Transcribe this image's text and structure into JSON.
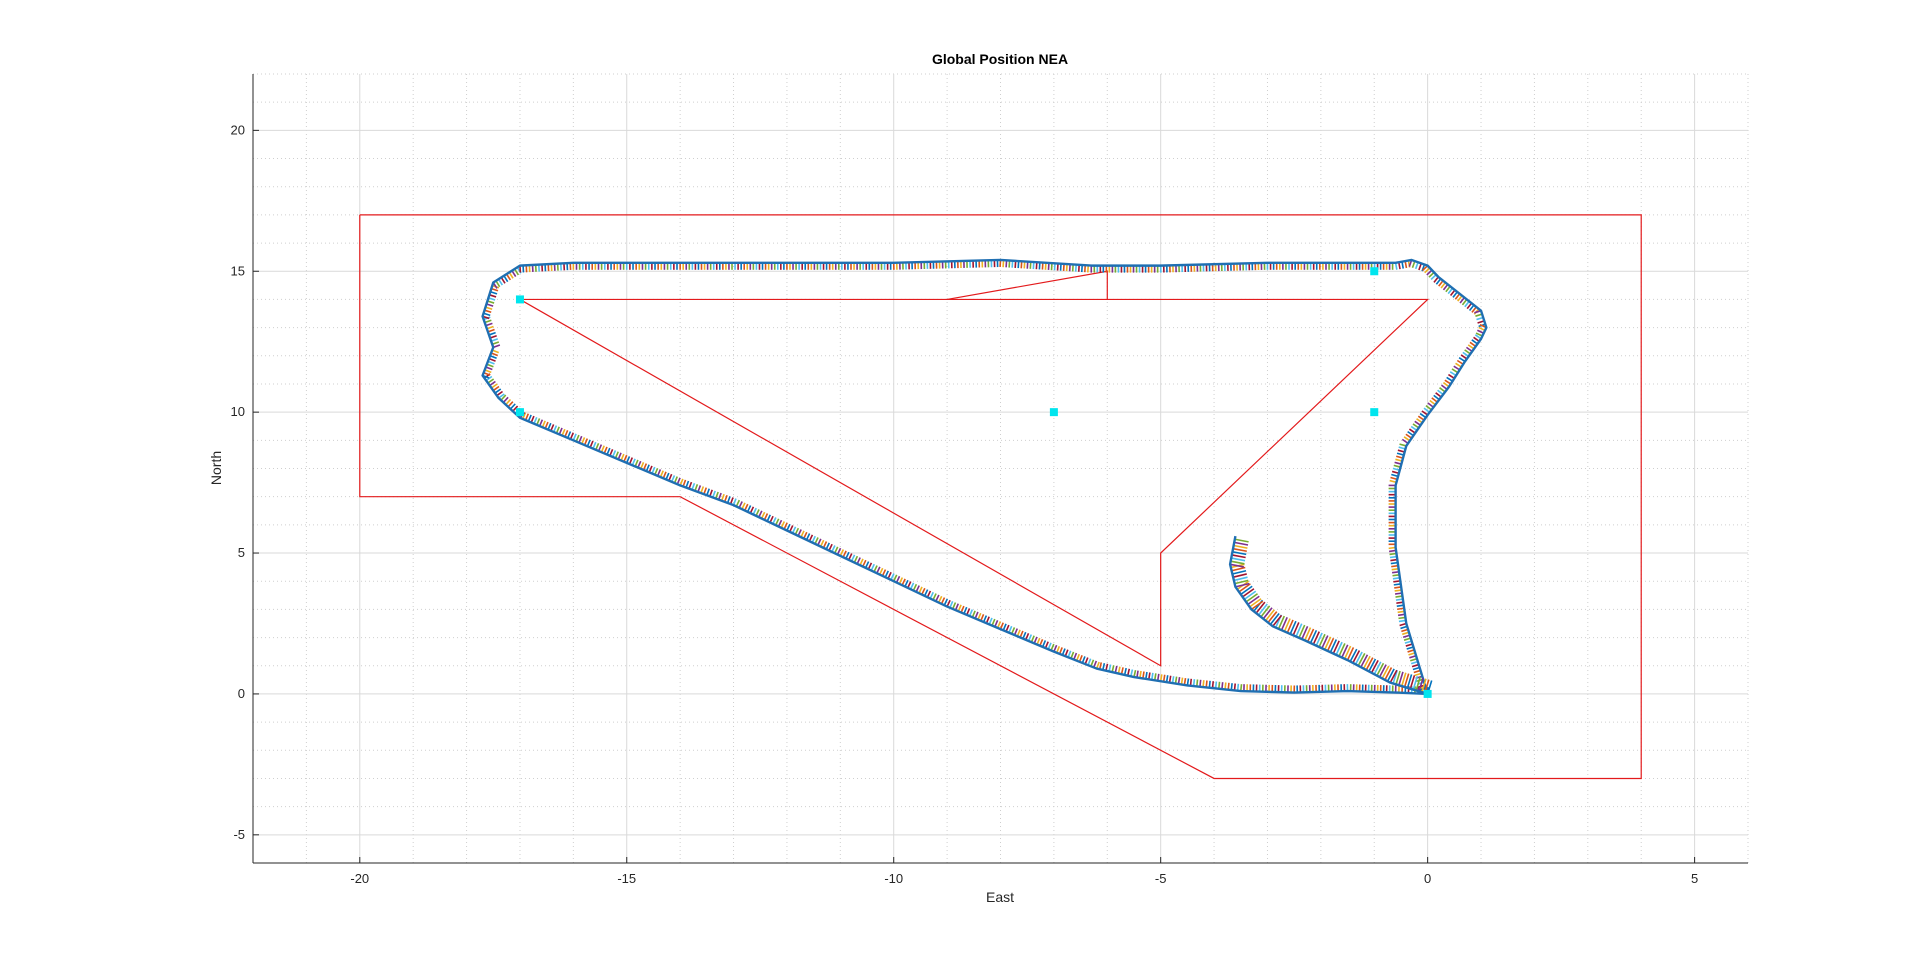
{
  "chart_data": {
    "type": "line",
    "title": "Global Position NEA",
    "xlabel": "East",
    "ylabel": "North",
    "xlim": [
      -22,
      6
    ],
    "ylim": [
      -6,
      22
    ],
    "xticks": [
      -20,
      -15,
      -10,
      -5,
      0,
      5
    ],
    "yticks": [
      -5,
      0,
      5,
      10,
      15,
      20
    ],
    "grid": "on (major and minor)",
    "colors": {
      "boundary": "#e31a1c",
      "trajectory": "#1f6fb2",
      "waypoint": "#00e5ee",
      "gridMajor": "#d9d9d9",
      "gridMinor": "#cfcfcf",
      "band": [
        "#0072BD",
        "#D95319",
        "#EDB120",
        "#7E2F8E",
        "#77AC30",
        "#4DBEEE",
        "#A2142F"
      ]
    },
    "series": [
      {
        "role": "boundary-outer",
        "x": [
          -20,
          4,
          4,
          -4,
          -14,
          -20,
          -20
        ],
        "y": [
          17,
          17,
          -3,
          -3,
          7,
          7,
          17
        ]
      },
      {
        "role": "boundary-inner",
        "x": [
          -17,
          0,
          -5,
          -5,
          -17
        ],
        "y": [
          14,
          14,
          5,
          1,
          14
        ]
      },
      {
        "role": "boundary-inner-notch",
        "x": [
          -9,
          -6,
          -6
        ],
        "y": [
          14,
          15,
          14
        ]
      },
      {
        "role": "waypoints",
        "x": [
          0,
          -17,
          -17,
          -7,
          -1,
          -1
        ],
        "y": [
          0,
          10,
          14,
          10,
          10,
          15
        ]
      },
      {
        "role": "trajectory-outer-loop",
        "x": [
          0,
          -0.6,
          -1.5,
          -2.5,
          -3.5,
          -4.5,
          -5.5,
          -6.2,
          -7,
          -8,
          -9,
          -10,
          -11,
          -12,
          -13,
          -14,
          -15,
          -16,
          -17,
          -17.4,
          -17.7,
          -17.5,
          -17.7,
          -17.5,
          -17,
          -16,
          -15,
          -14,
          -12,
          -10,
          -8,
          -6.3,
          -5,
          -3,
          -1.5,
          -0.6,
          -0.3,
          0,
          0.2,
          0.6,
          1.0,
          1.1,
          1.0,
          0.7,
          0.4,
          0.0,
          -0.4,
          -0.6,
          -0.6,
          -0.4,
          0
        ],
        "y": [
          0,
          0.05,
          0.1,
          0.05,
          0.1,
          0.3,
          0.6,
          0.9,
          1.5,
          2.3,
          3.1,
          4.0,
          4.9,
          5.8,
          6.7,
          7.4,
          8.2,
          9.0,
          9.8,
          10.5,
          11.3,
          12.3,
          13.4,
          14.6,
          15.2,
          15.3,
          15.3,
          15.3,
          15.3,
          15.3,
          15.4,
          15.2,
          15.2,
          15.3,
          15.3,
          15.3,
          15.4,
          15.2,
          14.8,
          14.2,
          13.6,
          13.0,
          12.6,
          11.8,
          10.9,
          9.9,
          8.8,
          7.4,
          5.2,
          2.5,
          0
        ]
      },
      {
        "role": "trajectory-inner-hook",
        "x": [
          0,
          -0.7,
          -1.5,
          -2.3,
          -2.9,
          -3.3,
          -3.6,
          -3.7,
          -3.6
        ],
        "y": [
          0,
          0.4,
          1.2,
          1.9,
          2.4,
          3.0,
          3.8,
          4.6,
          5.6
        ]
      }
    ]
  }
}
